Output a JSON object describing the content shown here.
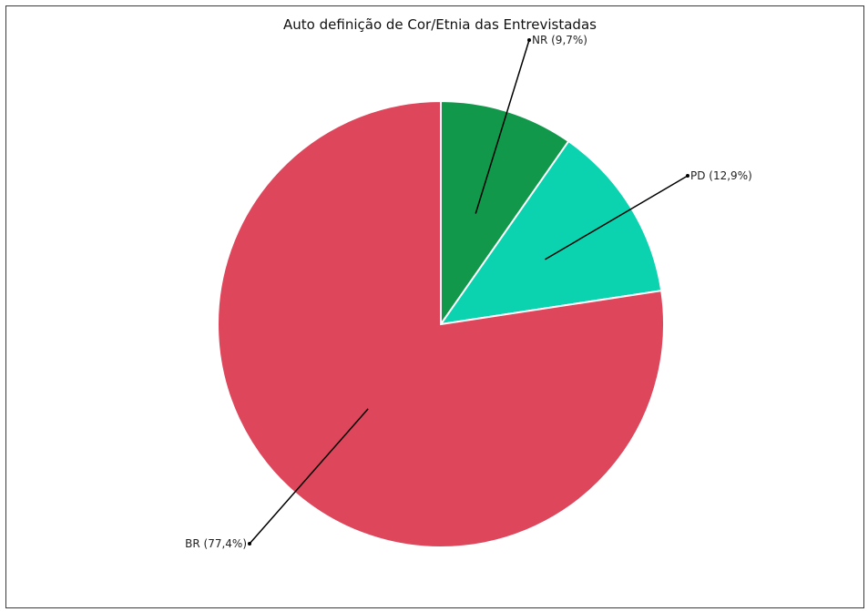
{
  "chart_data": {
    "type": "pie",
    "title": "Auto definição de Cor/Etnia das Entrevistadas",
    "slices": [
      {
        "label": "NR",
        "value": 9.7,
        "display": "NR (9,7%)",
        "color": "#12984a",
        "label_side": "right"
      },
      {
        "label": "PD",
        "value": 12.9,
        "display": "PD (12,9%)",
        "color": "#0bd3b0",
        "label_side": "right"
      },
      {
        "label": "BR",
        "value": 77.4,
        "display": "BR (77,4%)",
        "color": "#dd465b",
        "label_side": "left"
      }
    ],
    "start_angle": "12 o'clock",
    "direction": "clockwise"
  }
}
